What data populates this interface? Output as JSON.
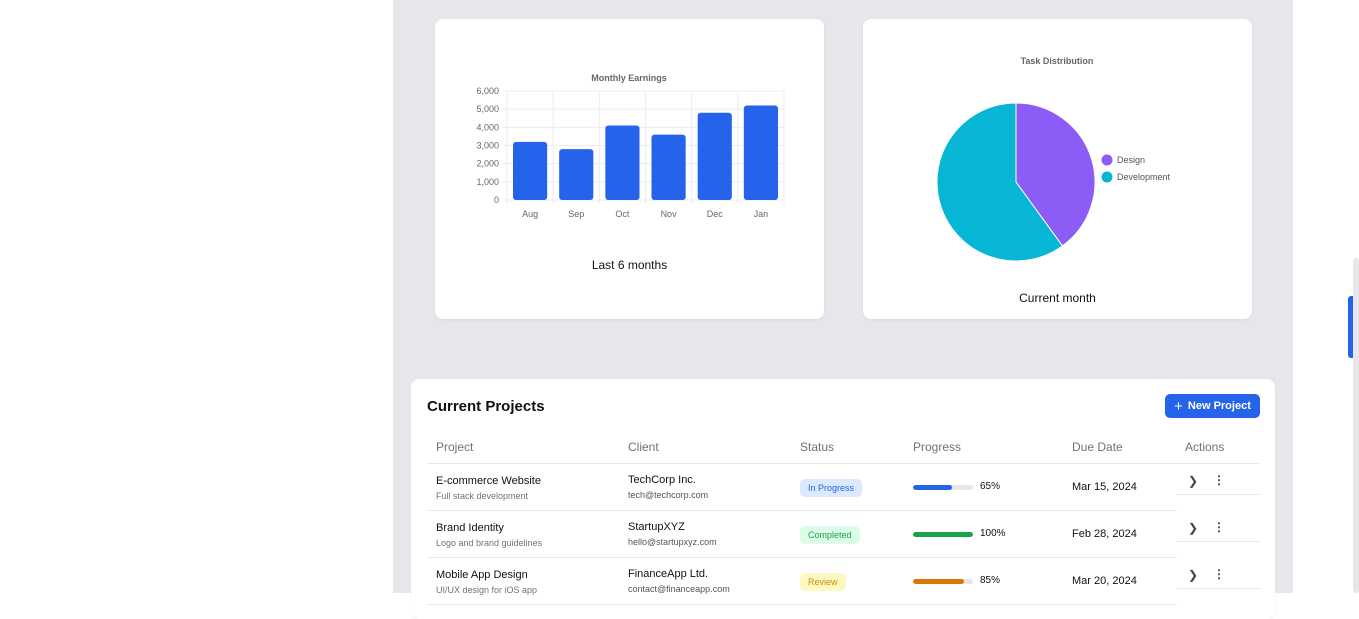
{
  "charts": {
    "earnings_caption": "Last 6 months",
    "distribution_caption": "Current month"
  },
  "chart_data": [
    {
      "type": "bar",
      "title": "Monthly Earnings",
      "categories": [
        "Aug",
        "Sep",
        "Oct",
        "Nov",
        "Dec",
        "Jan"
      ],
      "values": [
        3200,
        2800,
        4100,
        3600,
        4800,
        5200
      ],
      "ylim": [
        0,
        6000
      ],
      "yticks": [
        "0",
        "1,000",
        "2,000",
        "3,000",
        "4,000",
        "5,000",
        "6,000"
      ],
      "grid": true,
      "color": "#2563eb"
    },
    {
      "type": "pie",
      "title": "Task Distribution",
      "labels": [
        "Design",
        "Development"
      ],
      "values": [
        40,
        60
      ],
      "colors": [
        "#8b5cf6",
        "#06b6d4"
      ],
      "legend": "right"
    }
  ],
  "projects": {
    "title": "Current Projects",
    "new_label": "New Project",
    "headers": [
      "Project",
      "Client",
      "Status",
      "Progress",
      "Due Date",
      "Actions"
    ],
    "rows": [
      {
        "name": "E-commerce Website",
        "desc": "Full stack development",
        "client": "TechCorp Inc.",
        "email": "tech@techcorp.com",
        "status": "In Progress",
        "progress": 65,
        "progress_label": "65%",
        "due": "Mar 15, 2024"
      },
      {
        "name": "Brand Identity",
        "desc": "Logo and brand guidelines",
        "client": "StartupXYZ",
        "email": "hello@startupxyz.com",
        "status": "Completed",
        "progress": 100,
        "progress_label": "100%",
        "due": "Feb 28, 2024"
      },
      {
        "name": "Mobile App Design",
        "desc": "UI/UX design for iOS app",
        "client": "FinanceApp Ltd.",
        "email": "contact@financeapp.com",
        "status": "Review",
        "progress": 85,
        "progress_label": "85%",
        "due": "Mar 20, 2024"
      }
    ]
  },
  "status_colors": {
    "In Progress": [
      "#dbeafe",
      "#2563eb",
      "#2563eb"
    ],
    "Completed": [
      "#dcfce7",
      "#16a34a",
      "#16a34a"
    ],
    "Review": [
      "#fef9c3",
      "#ca8a04",
      "#d97706"
    ]
  }
}
